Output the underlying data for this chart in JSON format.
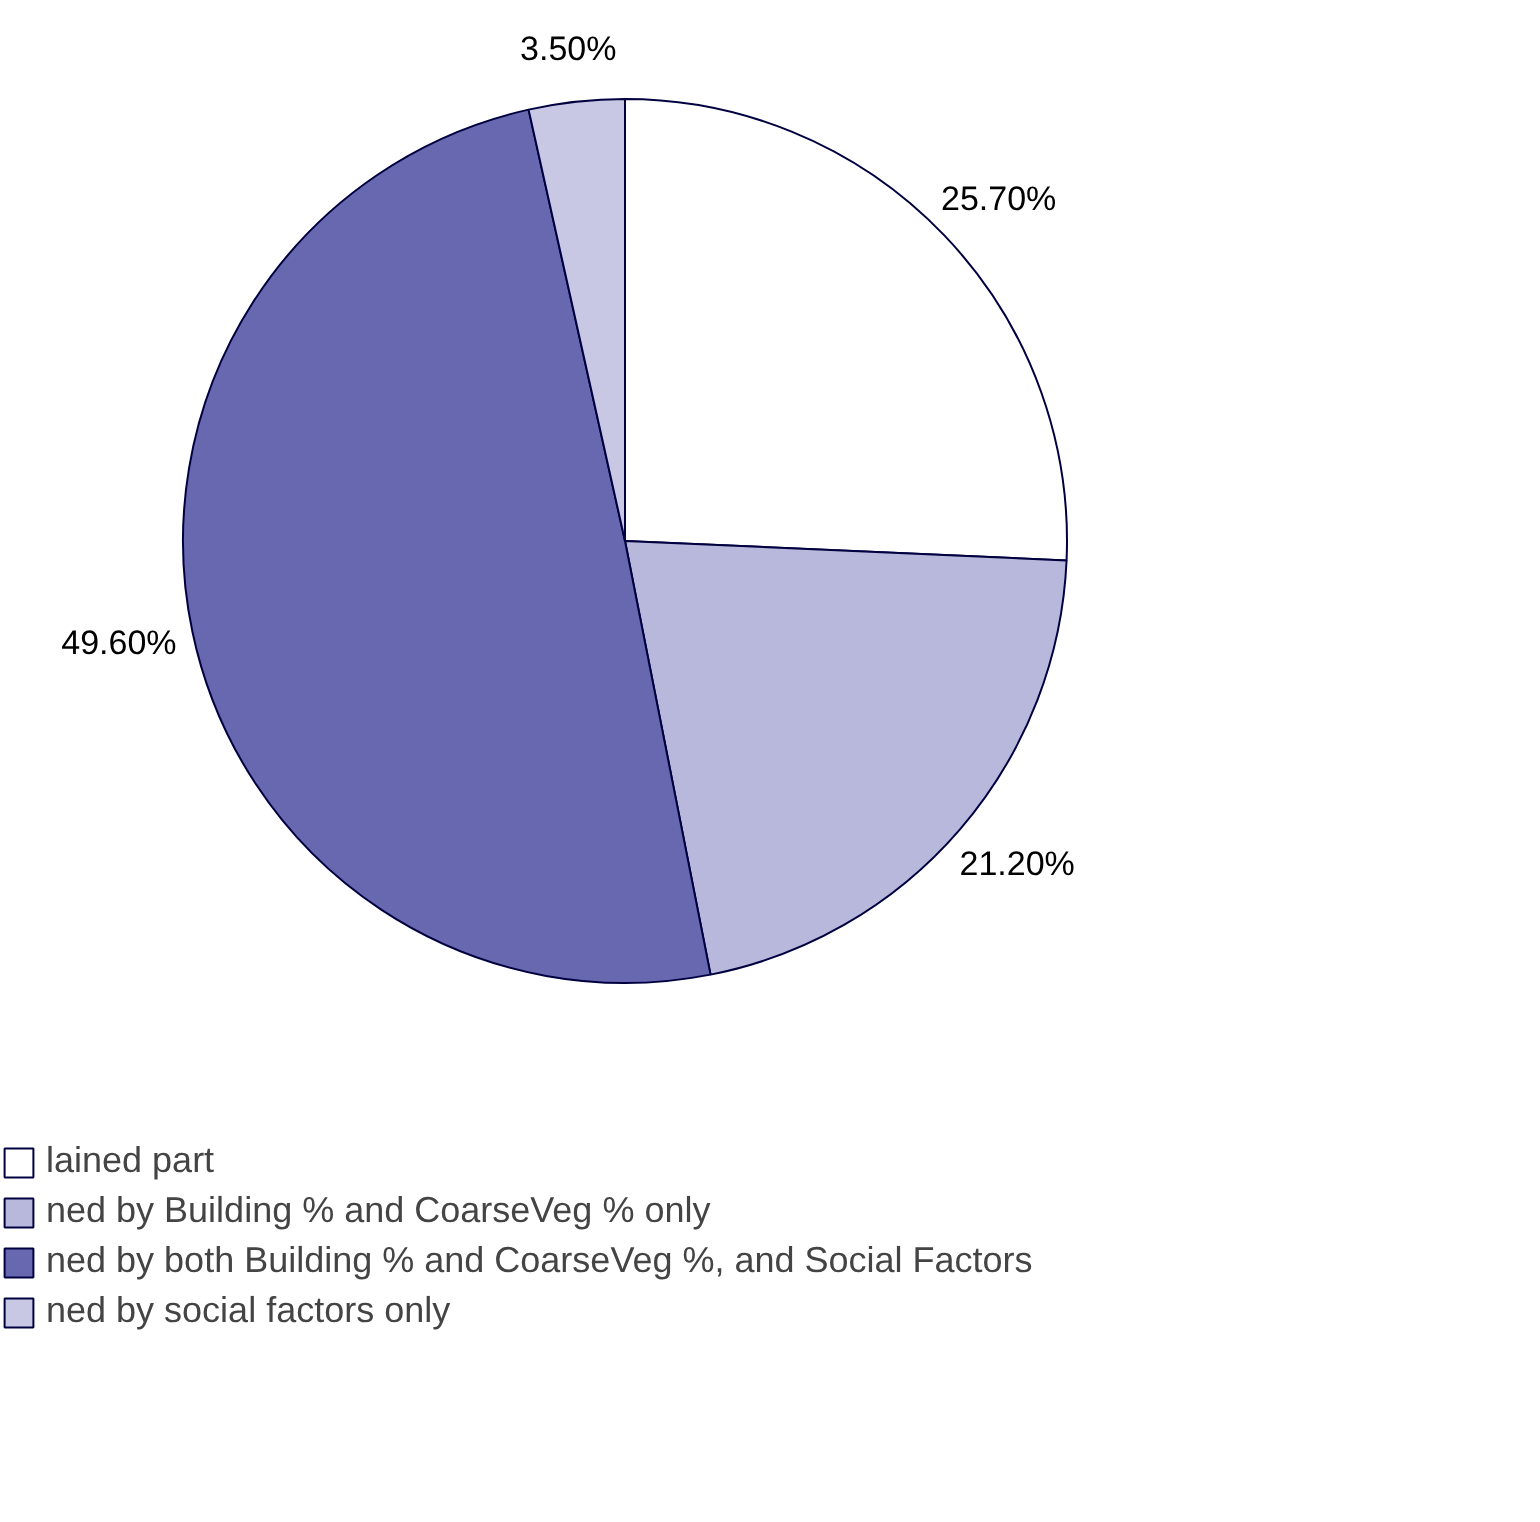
{
  "chart_data": {
    "type": "pie",
    "categories": [
      "lained part",
      "ned by Building % and CoarseVeg % only",
      "ned by both Building % and CoarseVeg %, and Social Factors",
      "ned by social factors only"
    ],
    "values": [
      25.7,
      21.2,
      49.6,
      3.5
    ],
    "colors": [
      "#ffffff",
      "#b8b8dc",
      "#6868b0",
      "#c8c8e4"
    ],
    "value_labels": [
      "25.70%",
      "21.20%",
      "49.60%",
      "3.50%"
    ],
    "legend": "bottom left"
  }
}
